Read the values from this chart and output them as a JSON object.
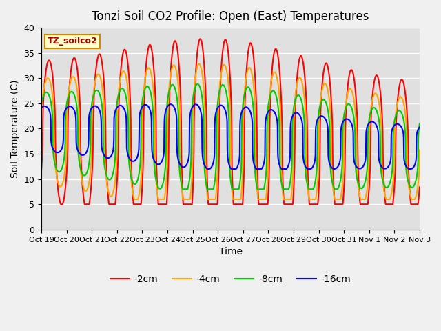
{
  "title": "Tonzi Soil CO2 Profile: Open (East) Temperatures",
  "xlabel": "Time",
  "ylabel": "Soil Temperature (C)",
  "annotation": "TZ_soilco2",
  "ylim": [
    0,
    40
  ],
  "bg_color": "#e0e0e0",
  "fig_bg_color": "#f0f0f0",
  "series_colors": [
    "#ff0000",
    "#ffa500",
    "#00cc00",
    "#0000ff"
  ],
  "series_labels": [
    "-2cm",
    "-4cm",
    "-8cm",
    "-16cm"
  ],
  "tick_labels": [
    "Oct 19",
    "Oct 20",
    "Oct 21",
    "Oct 22",
    "Oct 23",
    "Oct 24",
    "Oct 25",
    "Oct 26",
    "Oct 27",
    "Oct 28",
    "Oct 29",
    "Oct 30",
    "Oct 31",
    "Nov 1",
    "Nov 2",
    "Nov 3"
  ],
  "y_ticks": [
    0,
    5,
    10,
    15,
    20,
    25,
    30,
    35,
    40
  ]
}
